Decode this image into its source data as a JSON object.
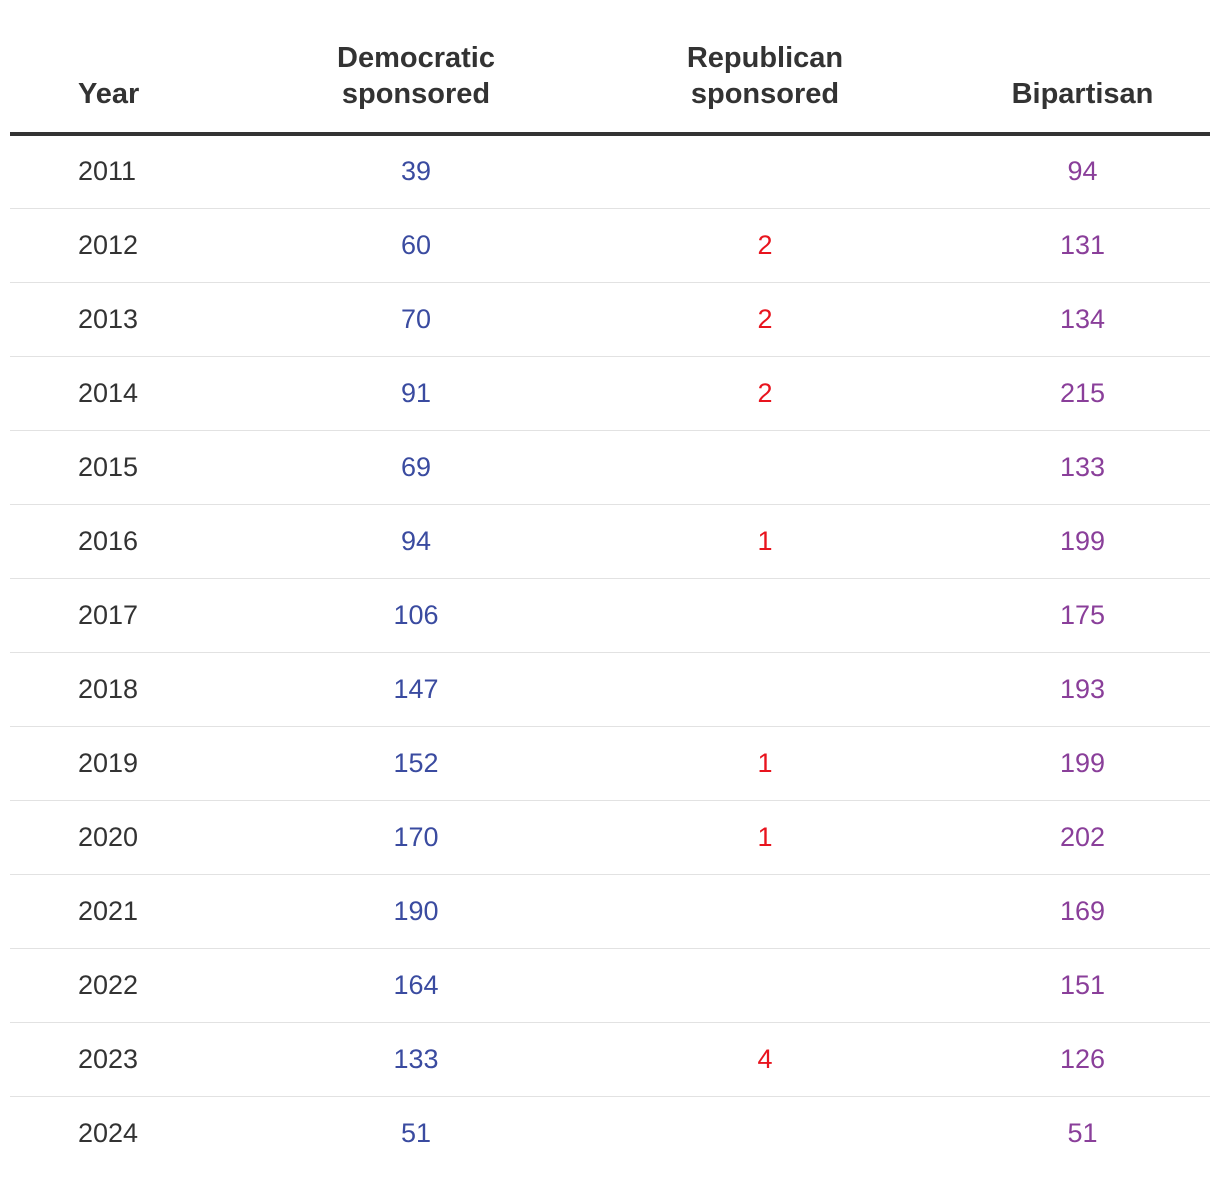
{
  "chart_data": {
    "type": "table",
    "columns": [
      "Year",
      "Democratic sponsored",
      "Republican sponsored",
      "Bipartisan"
    ],
    "header_lines": [
      [
        "Year"
      ],
      [
        "Democratic",
        "sponsored"
      ],
      [
        "Republican",
        "sponsored"
      ],
      [
        "Bipartisan"
      ]
    ],
    "rows": [
      {
        "year": "2011",
        "democratic": "39",
        "republican": "",
        "bipartisan": "94"
      },
      {
        "year": "2012",
        "democratic": "60",
        "republican": "2",
        "bipartisan": "131"
      },
      {
        "year": "2013",
        "democratic": "70",
        "republican": "2",
        "bipartisan": "134"
      },
      {
        "year": "2014",
        "democratic": "91",
        "republican": "2",
        "bipartisan": "215"
      },
      {
        "year": "2015",
        "democratic": "69",
        "republican": "",
        "bipartisan": "133"
      },
      {
        "year": "2016",
        "democratic": "94",
        "republican": "1",
        "bipartisan": "199"
      },
      {
        "year": "2017",
        "democratic": "106",
        "republican": "",
        "bipartisan": "175"
      },
      {
        "year": "2018",
        "democratic": "147",
        "republican": "",
        "bipartisan": "193"
      },
      {
        "year": "2019",
        "democratic": "152",
        "republican": "1",
        "bipartisan": "199"
      },
      {
        "year": "2020",
        "democratic": "170",
        "republican": "1",
        "bipartisan": "202"
      },
      {
        "year": "2021",
        "democratic": "190",
        "republican": "",
        "bipartisan": "169"
      },
      {
        "year": "2022",
        "democratic": "164",
        "republican": "",
        "bipartisan": "151"
      },
      {
        "year": "2023",
        "democratic": "133",
        "republican": "4",
        "bipartisan": "126"
      },
      {
        "year": "2024",
        "democratic": "51",
        "republican": "",
        "bipartisan": "51"
      }
    ]
  },
  "colors": {
    "democratic": "#3a4ba0",
    "republican": "#e8141e",
    "bipartisan": "#8a3f9a",
    "text": "#333333"
  }
}
